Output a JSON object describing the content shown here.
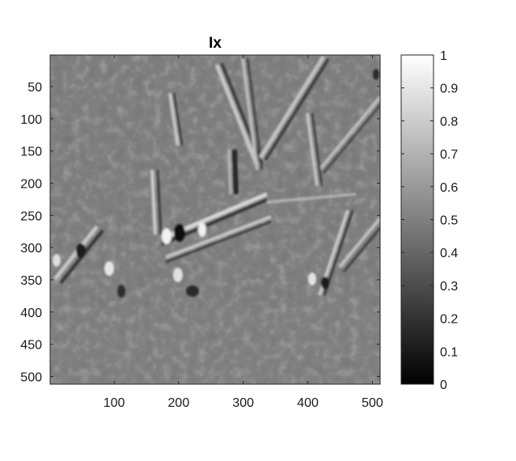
{
  "chart_data": {
    "type": "heatmap",
    "title": "Ix",
    "colormap": "gray",
    "xlim": [
      1,
      512
    ],
    "ylim": [
      1,
      512
    ],
    "x_ticks": [
      100,
      200,
      300,
      400,
      500
    ],
    "y_ticks": [
      50,
      100,
      150,
      200,
      250,
      300,
      350,
      400,
      450,
      500
    ],
    "x_tick_labels": [
      "100",
      "200",
      "300",
      "400",
      "500"
    ],
    "y_tick_labels": [
      "50",
      "100",
      "150",
      "200",
      "250",
      "300",
      "350",
      "400",
      "450",
      "500"
    ],
    "colorbar": {
      "range": [
        0,
        1
      ],
      "ticks": [
        0,
        0.1,
        0.2,
        0.3,
        0.4,
        0.5,
        0.6,
        0.7,
        0.8,
        0.9,
        1
      ],
      "tick_labels": [
        "0",
        "0.1",
        "0.2",
        "0.3",
        "0.4",
        "0.5",
        "0.6",
        "0.7",
        "0.8",
        "0.9",
        "1"
      ]
    },
    "background_value": 0.5
  }
}
